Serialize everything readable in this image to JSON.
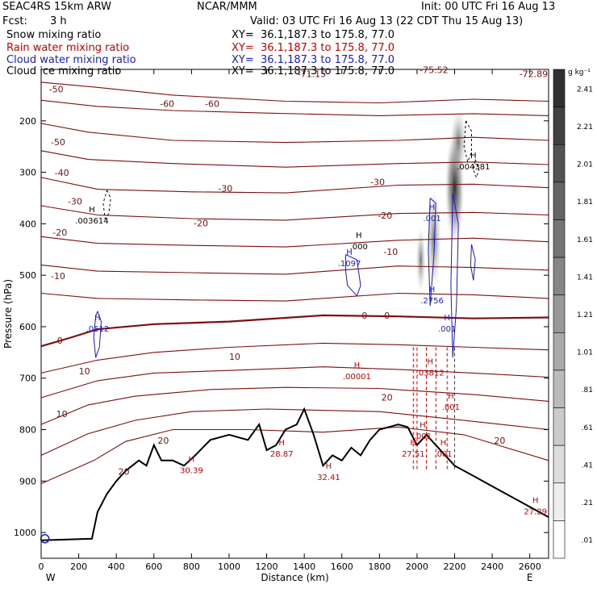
{
  "header": {
    "model": "SEAC4RS 15km ARW",
    "center": "NCAR/MMM",
    "init": "Init: 00 UTC Fri 16 Aug 13",
    "fcst_label": "Fcst:",
    "fcst_value": "3 h",
    "valid": "Valid: 03 UTC Fri 16 Aug 13 (22 CDT Thu 15 Aug 13)"
  },
  "fields": [
    {
      "name": "Snow mixing ratio",
      "xy": "XY=  36.1,187.3 to 175.8, 77.0",
      "color": "#000000"
    },
    {
      "name": "Rain water mixing ratio",
      "xy": "XY=  36.1,187.3 to 175.8, 77.0",
      "color": "#cc0000"
    },
    {
      "name": "Cloud water mixing ratio",
      "xy": "XY=  36.1,187.3 to 175.8, 77.0",
      "color": "#1a1acc"
    },
    {
      "name": "Cloud ice mixing ratio",
      "xy": "XY=  36.1,187.3 to 175.8, 77.0",
      "color": "#000000"
    }
  ],
  "colorbar": {
    "unit": "g kg⁻¹",
    "labels": [
      "2.41",
      "2.21",
      "2.01",
      "1.81",
      "1.61",
      "1.41",
      "1.21",
      "1.01",
      ".81",
      ".61",
      ".41",
      ".21",
      ".01"
    ]
  },
  "chart_data": {
    "type": "contour",
    "xlabel": "Distance (km)",
    "ylabel": "Pressure (hPa)",
    "xlim": [
      0,
      2700
    ],
    "ylim": [
      1050,
      100
    ],
    "x_ticks": [
      0,
      200,
      400,
      600,
      800,
      1000,
      1200,
      1400,
      1600,
      1800,
      2000,
      2200,
      2400,
      2600
    ],
    "y_ticks": [
      200,
      300,
      400,
      500,
      600,
      700,
      800,
      900,
      1000
    ],
    "x_end_labels": {
      "left": "W",
      "right": "E"
    },
    "temperature_contours": [
      {
        "level": -60,
        "label": "-60"
      },
      {
        "level": -50,
        "label": "-50"
      },
      {
        "level": -40,
        "label": "-40"
      },
      {
        "level": -30,
        "label": "-30"
      },
      {
        "level": -20,
        "label": "-20"
      },
      {
        "level": -10,
        "label": "-10"
      },
      {
        "level": 0,
        "label": "0"
      },
      {
        "level": 10,
        "label": "10"
      },
      {
        "level": 20,
        "label": "20"
      }
    ],
    "contour_labels": [
      {
        "text": "-50",
        "x": 80,
        "p": 140
      },
      {
        "text": "-60",
        "x": 670,
        "p": 168
      },
      {
        "text": "-60",
        "x": 910,
        "p": 168
      },
      {
        "text": "-50",
        "x": 90,
        "p": 243
      },
      {
        "text": "-40",
        "x": 110,
        "p": 302
      },
      {
        "text": "-30",
        "x": 180,
        "p": 358
      },
      {
        "text": "-30",
        "x": 980,
        "p": 333
      },
      {
        "text": "-30",
        "x": 1790,
        "p": 320
      },
      {
        "text": "-20",
        "x": 100,
        "p": 418
      },
      {
        "text": "-20",
        "x": 850,
        "p": 400
      },
      {
        "text": "-20",
        "x": 1830,
        "p": 385
      },
      {
        "text": "-10",
        "x": 90,
        "p": 503
      },
      {
        "text": "-10",
        "x": 1860,
        "p": 456
      },
      {
        "text": "0",
        "x": 100,
        "p": 628
      },
      {
        "text": "0",
        "x": 1720,
        "p": 580
      },
      {
        "text": "0",
        "x": 1840,
        "p": 580
      },
      {
        "text": "10",
        "x": 1030,
        "p": 660
      },
      {
        "text": "10",
        "x": 230,
        "p": 688
      },
      {
        "text": "10",
        "x": 110,
        "p": 771
      },
      {
        "text": "20",
        "x": 1840,
        "p": 739
      },
      {
        "text": "20",
        "x": 650,
        "p": 823
      },
      {
        "text": "20",
        "x": 440,
        "p": 883
      },
      {
        "text": "20",
        "x": 2440,
        "p": 823
      }
    ],
    "top_values": [
      {
        "text": "-71.15",
        "x": 1440,
        "p": 110
      },
      {
        "text": "-75.52",
        "x": 2090,
        "p": 102
      },
      {
        "text": "-72.89",
        "x": 2620,
        "p": 110
      }
    ],
    "maxima": [
      {
        "text": ".003614",
        "x": 270,
        "p": 395,
        "color": "#000000"
      },
      {
        "text": ".0512",
        "x": 300,
        "p": 605,
        "color": "#1a1acc"
      },
      {
        "text": ".000",
        "x": 1690,
        "p": 445,
        "color": "#000000"
      },
      {
        "text": ".1097",
        "x": 1640,
        "p": 478,
        "color": "#1a1acc"
      },
      {
        "text": ".001",
        "x": 2080,
        "p": 390,
        "color": "#1a1acc"
      },
      {
        "text": ".2756",
        "x": 2080,
        "p": 550,
        "color": "#1a1acc"
      },
      {
        "text": ".001",
        "x": 2160,
        "p": 605,
        "color": "#1a1acc"
      },
      {
        "text": ".004381",
        "x": 2300,
        "p": 290,
        "color": "#000000"
      },
      {
        "text": ".00001",
        "x": 1680,
        "p": 697,
        "color": "#cc0000"
      },
      {
        "text": ".03812",
        "x": 2070,
        "p": 690,
        "color": "#cc0000"
      },
      {
        "text": ".001",
        "x": 2180,
        "p": 757,
        "color": "#cc0000"
      },
      {
        "text": ".001",
        "x": 2030,
        "p": 813,
        "color": "#cc0000"
      },
      {
        "text": ".001",
        "x": 2140,
        "p": 848,
        "color": "#cc0000"
      },
      {
        "text": "30.39",
        "x": 800,
        "p": 880,
        "color": "#cc0000"
      },
      {
        "text": "28.87",
        "x": 1280,
        "p": 848,
        "color": "#cc0000"
      },
      {
        "text": "32.41",
        "x": 1530,
        "p": 893,
        "color": "#cc0000"
      },
      {
        "text": "27.51",
        "x": 1980,
        "p": 848,
        "color": "#cc0000"
      },
      {
        "text": "27.29",
        "x": 2630,
        "p": 960,
        "color": "#cc0000"
      }
    ]
  }
}
